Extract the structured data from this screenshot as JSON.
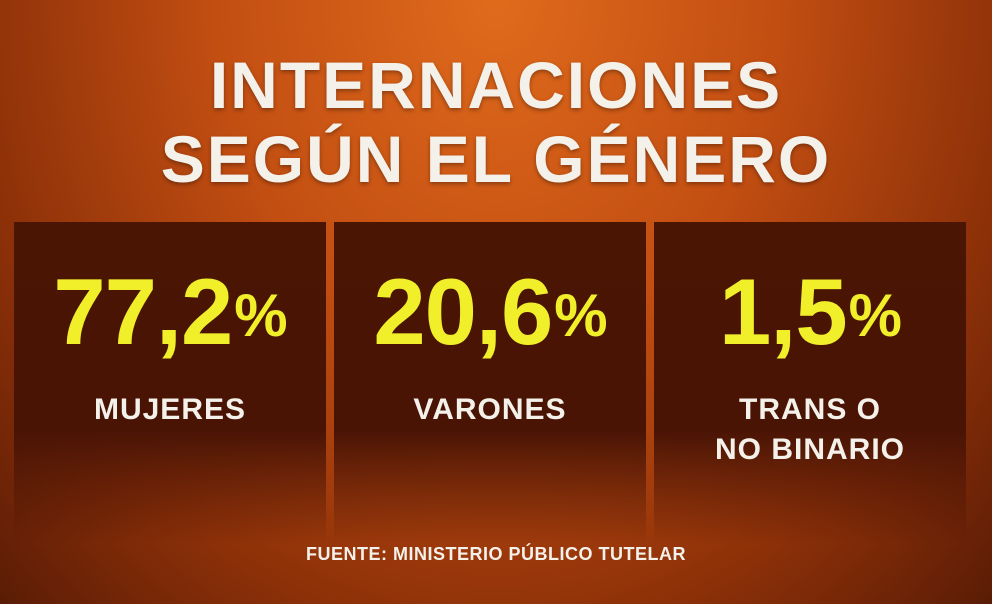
{
  "title": {
    "line1": "INTERNACIONES",
    "line2": "SEGÚN EL GÉNERO"
  },
  "stats": [
    {
      "value": "77,2",
      "unit": "%",
      "label_line1": "MUJERES",
      "label_line2": ""
    },
    {
      "value": "20,6",
      "unit": "%",
      "label_line1": "VARONES",
      "label_line2": ""
    },
    {
      "value": "1,5",
      "unit": "%",
      "label_line1": "TRANS O",
      "label_line2": "NO BINARIO"
    }
  ],
  "source": "FUENTE: MINISTERIO PÚBLICO TUTELAR",
  "colors": {
    "accent": "#f1ef2a",
    "text": "#f4f1ea",
    "panel": "#4b1504",
    "background": "#c24e12"
  }
}
